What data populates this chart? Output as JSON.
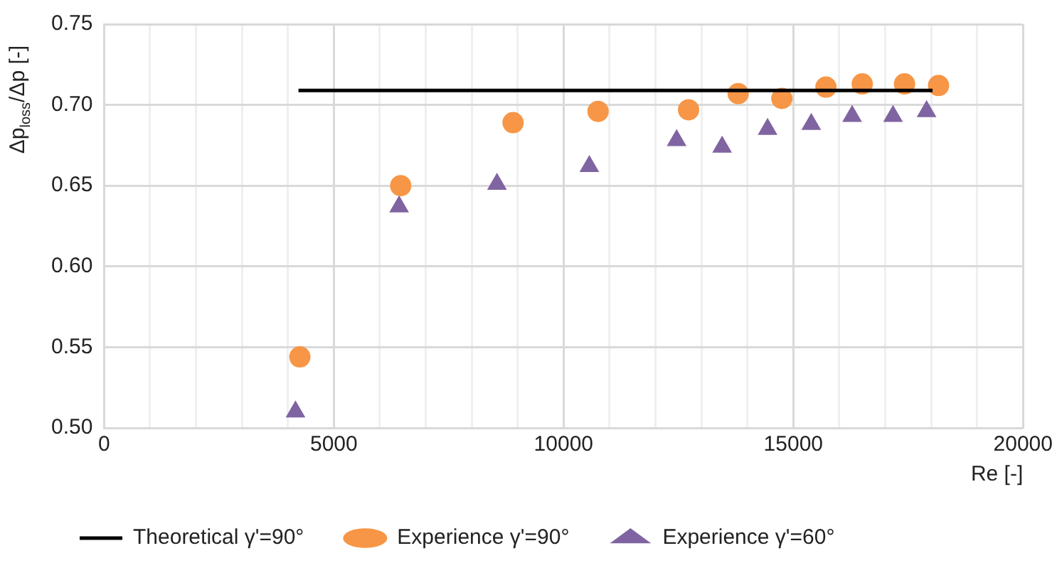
{
  "chart_data": {
    "type": "scatter",
    "xlabel": "Re [-]",
    "ylabel": "Δp$_{loss}$/Δp [-]",
    "xlim": [
      0,
      20000
    ],
    "xticks": [
      0,
      {
        "value": 1000,
        "label": null
      },
      {
        "value": 2000,
        "label": null
      },
      {
        "value": 3000,
        "label": null
      },
      {
        "value": 4000,
        "label": null
      },
      5000,
      {
        "value": 6000,
        "label": null
      },
      {
        "value": 7000,
        "label": null
      },
      {
        "value": 8000,
        "label": null
      },
      {
        "value": 9000,
        "label": null
      },
      10000,
      {
        "value": 11000,
        "label": null
      },
      {
        "value": 12000,
        "label": null
      },
      {
        "value": 13000,
        "label": null
      },
      {
        "value": 14000,
        "label": null
      },
      15000,
      {
        "value": 16000,
        "label": null
      },
      {
        "value": 17000,
        "label": null
      },
      {
        "value": 18000,
        "label": null
      },
      {
        "value": 19000,
        "label": null
      },
      20000
    ],
    "ylim": [
      0.5,
      0.75
    ],
    "yticks": [
      {
        "value": 0.5,
        "label": "0.50"
      },
      {
        "value": 0.55,
        "label": "0.55"
      },
      {
        "value": 0.6,
        "label": "0.60"
      },
      {
        "value": 0.65,
        "label": "0.65"
      },
      {
        "value": 0.7,
        "label": "0.70"
      },
      {
        "value": 0.75,
        "label": "0.75"
      }
    ],
    "grid": true,
    "legend": "bottom",
    "series": [
      {
        "name": "Theoretical γ'=90°",
        "type": "line",
        "marker": "none",
        "line_style": "solid",
        "color": "#000000",
        "x": [
          4230,
          18030
        ],
        "values": [
          0.709,
          0.709
        ]
      },
      {
        "name": "Experience γ'=90°",
        "type": "scatter",
        "marker": "circle",
        "color": "#f79646",
        "x": [
          4260,
          6455,
          8900,
          10750,
          12720,
          13800,
          14750,
          15710,
          16500,
          17420,
          18160
        ],
        "values": [
          0.544,
          0.65,
          0.689,
          0.696,
          0.697,
          0.707,
          0.704,
          0.711,
          0.713,
          0.713,
          0.712
        ]
      },
      {
        "name": "Experience γ'=60°",
        "type": "scatter",
        "marker": "triangle",
        "color": "#8064a2",
        "x": [
          4165,
          6420,
          8550,
          10560,
          12460,
          13450,
          14440,
          15390,
          16280,
          17170,
          17900
        ],
        "values": [
          0.51,
          0.637,
          0.651,
          0.662,
          0.678,
          0.674,
          0.685,
          0.688,
          0.693,
          0.693,
          0.696
        ]
      }
    ]
  }
}
